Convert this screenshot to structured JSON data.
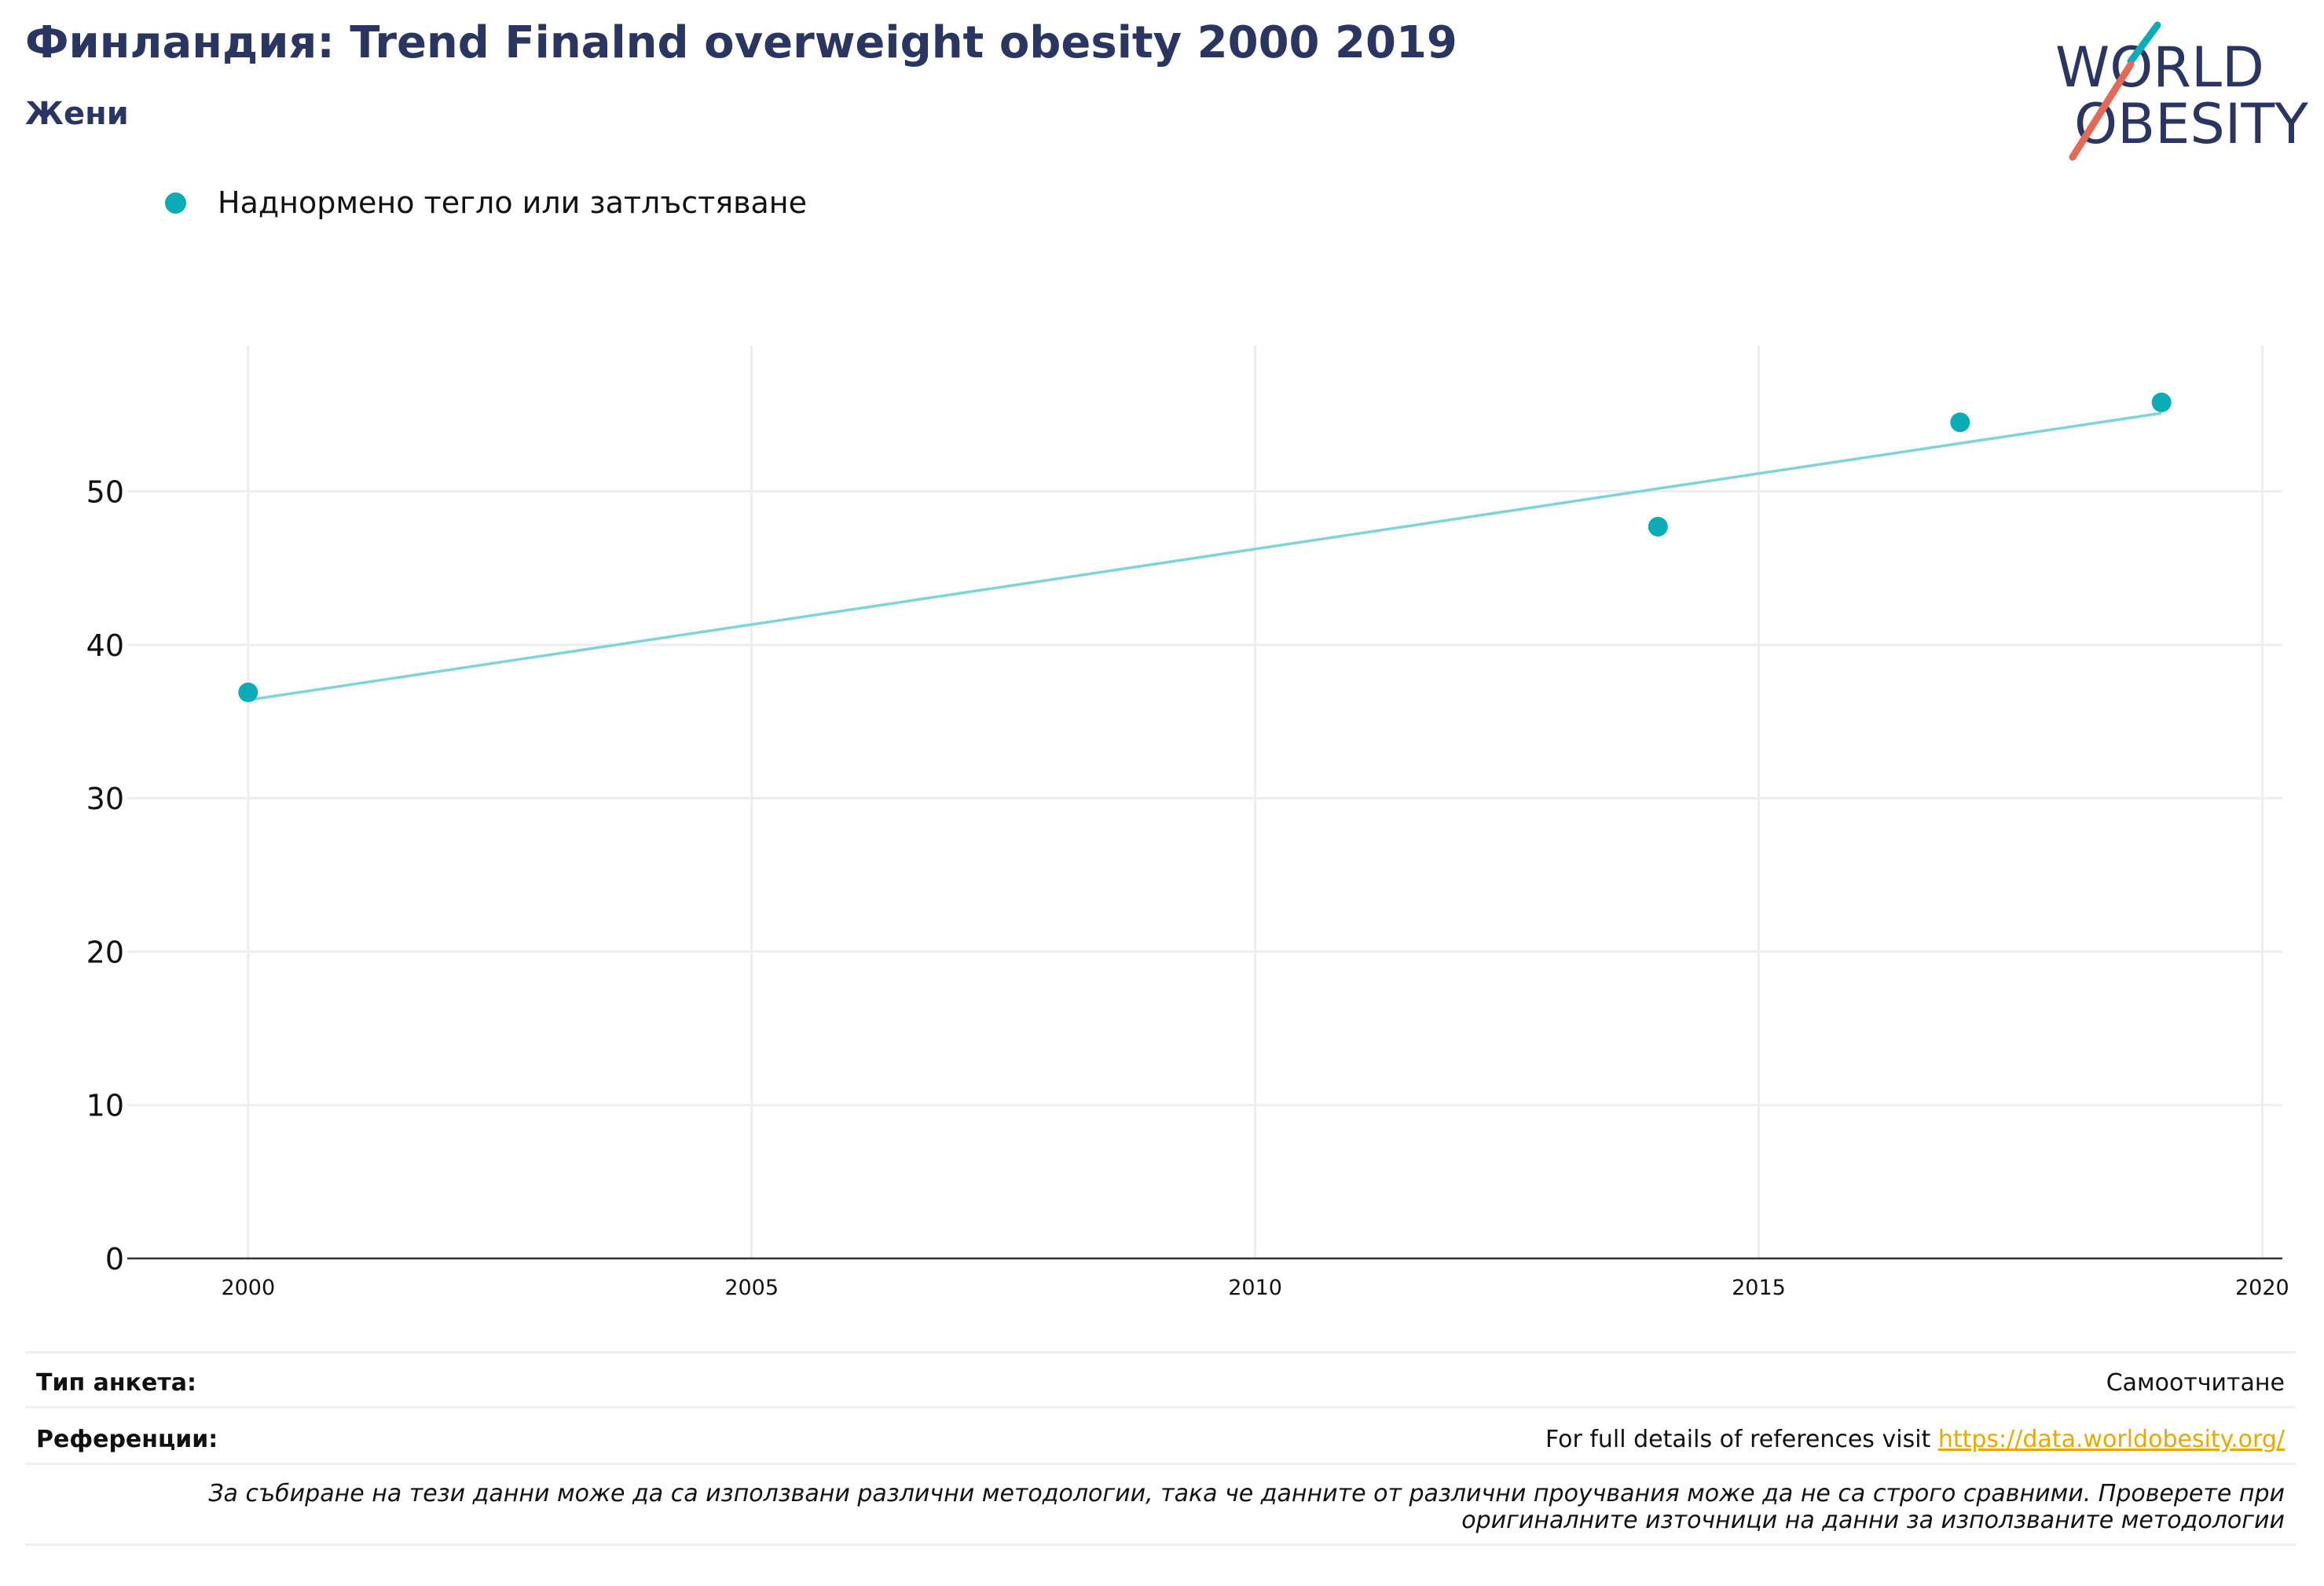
{
  "header": {
    "title": "Финландия: Trend Finalnd overweight obesity 2000 2019",
    "subtitle": "Жени"
  },
  "logo": {
    "line1": "WORLD",
    "line2": "OBESITY"
  },
  "colors": {
    "accent": "#0aacb8",
    "trend": "#7fd4d9",
    "title": "#2a3561",
    "logo_slash": "#e36a58",
    "grid": "#eeeef2",
    "link": "#e8a800"
  },
  "chart_data": {
    "type": "scatter",
    "series": [
      {
        "name": "Наднормено тегло или затлъстяване",
        "x": [
          2000,
          2014,
          2017,
          2019
        ],
        "y": [
          36.9,
          47.7,
          54.5,
          55.8
        ]
      }
    ],
    "trendline": {
      "x": [
        2000,
        2019
      ],
      "y": [
        36.4,
        55.1
      ]
    },
    "x_ticks": [
      "2000",
      "2005",
      "2010",
      "2015",
      "2020"
    ],
    "y_ticks": [
      "0",
      "10",
      "20",
      "30",
      "40",
      "50"
    ],
    "xlim": [
      1998.8,
      2020.2
    ],
    "ylim": [
      0,
      59.5
    ],
    "grid": true,
    "legend_position": "top-left"
  },
  "info": {
    "survey_type_label": "Тип анкета:",
    "survey_type_value": "Самоотчитане",
    "references_label": "Референции:",
    "references_text": "For full details of references visit ",
    "references_link": "https://data.worldobesity.org/",
    "note_line1": "За събиране на тези данни може да са използвани различни методологии, така че данните от различни проучвания може да не са строго сравними. Проверете при",
    "note_line2": "оригиналните източници на данни за използваните методологии"
  }
}
